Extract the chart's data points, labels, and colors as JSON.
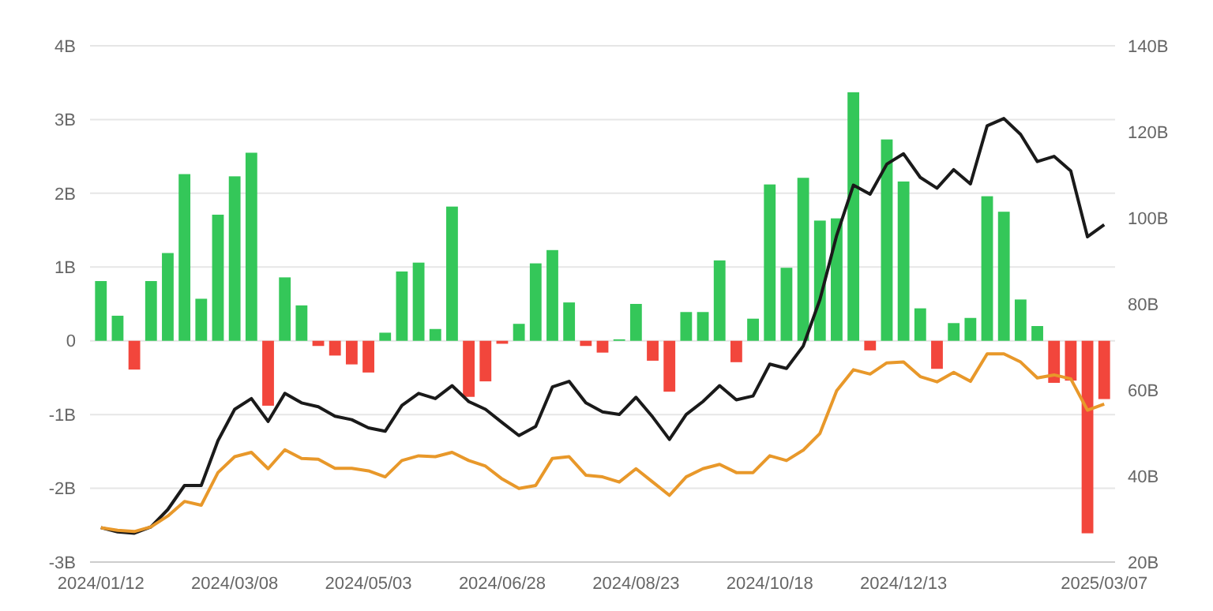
{
  "chart_data": {
    "type": "bar",
    "categories": [
      "2024/01/12",
      null,
      null,
      null,
      null,
      null,
      null,
      null,
      "2024/03/08",
      null,
      null,
      null,
      null,
      null,
      null,
      null,
      "2024/05/03",
      null,
      null,
      null,
      null,
      null,
      null,
      null,
      "2024/06/28",
      null,
      null,
      null,
      null,
      null,
      null,
      null,
      "2024/08/23",
      null,
      null,
      null,
      null,
      null,
      null,
      null,
      "2024/10/18",
      null,
      null,
      null,
      null,
      null,
      null,
      null,
      "2024/12/13",
      null,
      null,
      null,
      null,
      null,
      null,
      null,
      null,
      null,
      null,
      null,
      "2025/03/07"
    ],
    "series": [
      {
        "values": [
          0.81,
          0.34,
          -0.39,
          0.81,
          1.19,
          2.26,
          0.57,
          1.71,
          2.23,
          2.55,
          -0.88,
          0.86,
          0.48,
          -0.07,
          -0.2,
          -0.32,
          -0.43,
          0.11,
          0.94,
          1.06,
          0.16,
          1.82,
          -0.76,
          -0.55,
          -0.04,
          0.23,
          1.05,
          1.23,
          0.52,
          -0.07,
          -0.16,
          0.02,
          0.5,
          -0.27,
          -0.69,
          0.39,
          0.39,
          1.09,
          -0.29,
          0.3,
          2.12,
          0.99,
          2.21,
          1.63,
          1.66,
          3.37,
          -0.13,
          2.73,
          2.16,
          0.44,
          -0.38,
          0.24,
          0.31,
          1.96,
          1.75,
          0.56,
          0.2,
          -0.57,
          -0.54,
          -2.61,
          -0.79
        ],
        "colors": [
          "#34c759",
          "#34c759",
          "#f2463c",
          "#34c759",
          "#34c759",
          "#34c759",
          "#34c759",
          "#34c759",
          "#34c759",
          "#34c759",
          "#f2463c",
          "#34c759",
          "#34c759",
          "#f2463c",
          "#f2463c",
          "#f2463c",
          "#f2463c",
          "#34c759",
          "#34c759",
          "#34c759",
          "#34c759",
          "#34c759",
          "#f2463c",
          "#f2463c",
          "#f2463c",
          "#34c759",
          "#34c759",
          "#34c759",
          "#34c759",
          "#f2463c",
          "#f2463c",
          "#34c759",
          "#34c759",
          "#f2463c",
          "#f2463c",
          "#34c759",
          "#34c759",
          "#34c759",
          "#f2463c",
          "#34c759",
          "#34c759",
          "#34c759",
          "#34c759",
          "#34c759",
          "#34c759",
          "#34c759",
          "#f2463c",
          "#34c759",
          "#34c759",
          "#34c759",
          "#f2463c",
          "#34c759",
          "#34c759",
          "#34c759",
          "#34c759",
          "#34c759",
          "#34c759",
          "#f2463c",
          "#f2463c",
          "#f2463c",
          "#f2463c"
        ]
      },
      {
        "type": "line",
        "axis": "y2",
        "color": "#1a1a1a",
        "values": [
          28,
          27,
          26.7,
          28.2,
          32.2,
          37.8,
          37.8,
          48.2,
          55.5,
          58,
          52.7,
          59.2,
          57,
          56.1,
          53.9,
          53.1,
          51.2,
          50.4,
          56.4,
          59.2,
          58,
          61,
          57.3,
          55.5,
          52.4,
          49.4,
          51.5,
          60.7,
          62,
          57,
          54.9,
          54.3,
          58.3,
          53.7,
          48.5,
          54.3,
          57.3,
          61,
          57.7,
          58.6,
          66,
          65,
          70.2,
          81,
          95.9,
          107.6,
          105.5,
          112.5,
          114.9,
          109.4,
          106.9,
          111.2,
          107.9,
          121.4,
          123.1,
          119.4,
          113.1,
          114.3,
          110.9,
          95.6,
          98.4
        ]
      },
      {
        "type": "line",
        "axis": "y2",
        "color": "#e8982a",
        "values": [
          28,
          27.4,
          27.1,
          28.2,
          30.7,
          34.1,
          33.2,
          40.8,
          44.5,
          45.5,
          41.7,
          46.1,
          44.1,
          43.9,
          41.8,
          41.8,
          41.2,
          39.8,
          43.6,
          44.7,
          44.5,
          45.5,
          43.6,
          42.3,
          39.3,
          37.1,
          37.8,
          44.1,
          44.5,
          40.2,
          39.8,
          38.6,
          41.7,
          38.6,
          35.5,
          39.8,
          41.7,
          42.7,
          40.8,
          40.8,
          44.7,
          43.6,
          46,
          49.9,
          59.8,
          64.7,
          63.7,
          66.3,
          66.5,
          63.1,
          61.9,
          64.1,
          62,
          68.4,
          68.4,
          66.5,
          62.8,
          63.5,
          62.6,
          55.3,
          56.7
        ]
      }
    ],
    "ylim": [
      -3,
      4
    ],
    "yticks": [
      {
        "value": -3,
        "label": "-3B"
      },
      {
        "value": -2,
        "label": "-2B"
      },
      {
        "value": -1,
        "label": "-1B"
      },
      0,
      {
        "value": 1,
        "label": "1B"
      },
      {
        "value": 2,
        "label": "2B"
      },
      {
        "value": 3,
        "label": "3B"
      },
      {
        "value": 4,
        "label": "4B"
      }
    ],
    "y2lim": [
      20,
      140
    ],
    "y2ticks": [
      {
        "value": 20,
        "label": "20B"
      },
      {
        "value": 40,
        "label": "40B"
      },
      {
        "value": 60,
        "label": "60B"
      },
      {
        "value": 80,
        "label": "80B"
      },
      {
        "value": 100,
        "label": "100B"
      },
      {
        "value": 120,
        "label": "120B"
      },
      {
        "value": 140,
        "label": "140B"
      }
    ],
    "grid": "y",
    "marker": "none",
    "line_style": "solid"
  }
}
